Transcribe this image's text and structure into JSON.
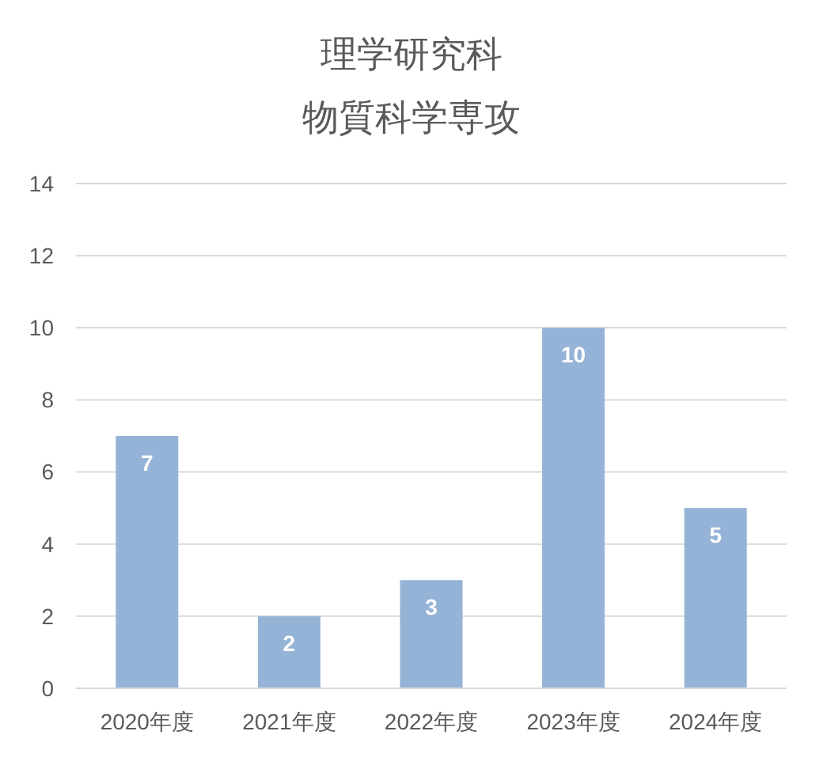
{
  "chart_data": {
    "type": "bar",
    "title": "理学研究科",
    "subtitle": "物質科学専攻",
    "categories": [
      "2020年度",
      "2021年度",
      "2022年度",
      "2023年度",
      "2024年度"
    ],
    "values": [
      7,
      2,
      3,
      10,
      5
    ],
    "color": "#95b3d7",
    "ylim": [
      0,
      14
    ],
    "yticks": [
      0,
      2,
      4,
      6,
      8,
      10,
      12,
      14
    ],
    "grid": "y",
    "data_labels": true
  }
}
